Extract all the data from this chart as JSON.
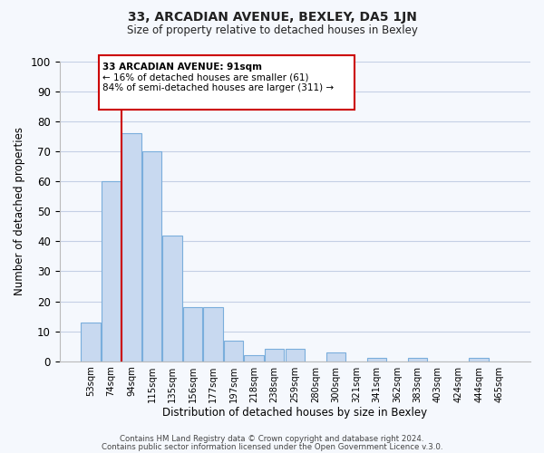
{
  "title": "33, ARCADIAN AVENUE, BEXLEY, DA5 1JN",
  "subtitle": "Size of property relative to detached houses in Bexley",
  "xlabel": "Distribution of detached houses by size in Bexley",
  "ylabel": "Number of detached properties",
  "bar_labels": [
    "53sqm",
    "74sqm",
    "94sqm",
    "115sqm",
    "135sqm",
    "156sqm",
    "177sqm",
    "197sqm",
    "218sqm",
    "238sqm",
    "259sqm",
    "280sqm",
    "300sqm",
    "321sqm",
    "341sqm",
    "362sqm",
    "383sqm",
    "403sqm",
    "424sqm",
    "444sqm",
    "465sqm"
  ],
  "bar_values": [
    13,
    60,
    76,
    70,
    42,
    18,
    18,
    7,
    2,
    4,
    4,
    0,
    3,
    0,
    1,
    0,
    1,
    0,
    0,
    1,
    0
  ],
  "bar_color": "#c8d9f0",
  "bar_edge_color": "#7aaedc",
  "vline_color": "#cc0000",
  "annotation_title": "33 ARCADIAN AVENUE: 91sqm",
  "annotation_line1": "← 16% of detached houses are smaller (61)",
  "annotation_line2": "84% of semi-detached houses are larger (311) →",
  "annotation_box_color": "#ffffff",
  "annotation_box_edge": "#cc0000",
  "ylim": [
    0,
    100
  ],
  "yticks": [
    0,
    10,
    20,
    30,
    40,
    50,
    60,
    70,
    80,
    90,
    100
  ],
  "footer1": "Contains HM Land Registry data © Crown copyright and database right 2024.",
  "footer2": "Contains public sector information licensed under the Open Government Licence v.3.0.",
  "bg_color": "#f5f8fd",
  "grid_color": "#c5d0e5"
}
